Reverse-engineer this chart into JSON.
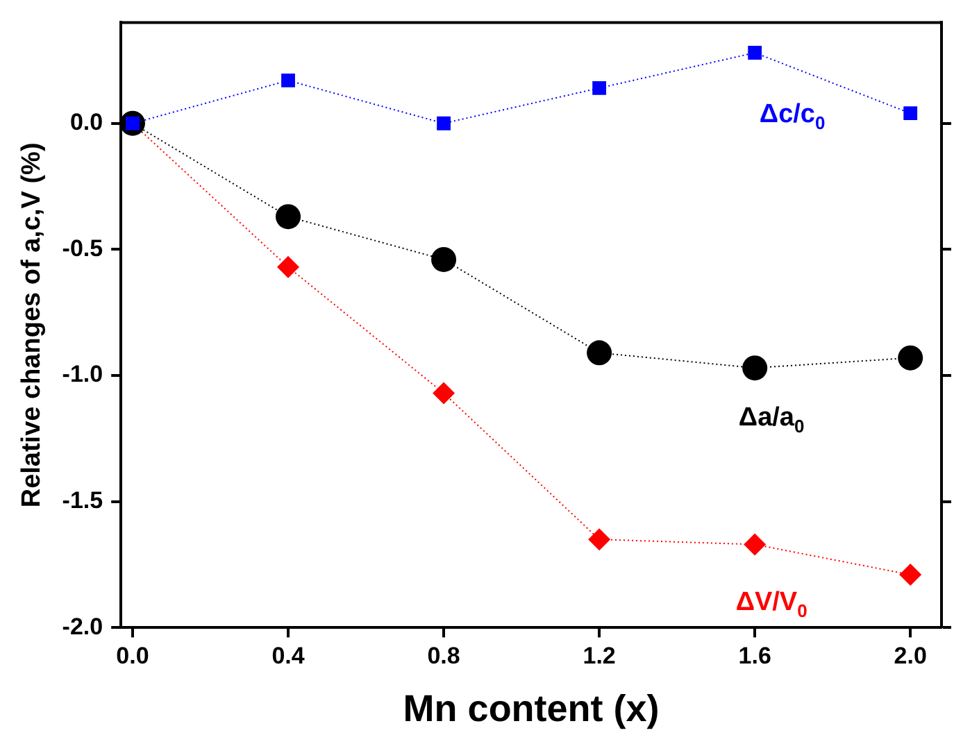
{
  "chart_data": {
    "type": "line",
    "xlabel": "Mn content (x)",
    "ylabel": "Relative changes of a,c,V (%)",
    "x": [
      0,
      0.4,
      0.8,
      1.2,
      1.6,
      2.0
    ],
    "series": [
      {
        "name": "Δc/c$_{0}$",
        "color": "#0000ff",
        "marker": "square",
        "values": [
          0,
          0.17,
          0,
          0.14,
          0.28,
          0.04
        ]
      },
      {
        "name": "Δa/a$_{0}$",
        "color": "#000000",
        "marker": "circle",
        "values": [
          0,
          -0.37,
          -0.54,
          -0.91,
          -0.97,
          -0.93
        ]
      },
      {
        "name": "ΔV/V$_{0}$",
        "color": "#ff0000",
        "marker": "diamond",
        "values": [
          0,
          -0.57,
          -1.07,
          -1.65,
          -1.67,
          -1.79
        ]
      }
    ],
    "xlim": [
      -0.03,
      2.08
    ],
    "xticks": [
      {
        "value": 0,
        "label": "0.0"
      },
      0.4,
      0.8,
      1.2,
      1.6,
      {
        "value": 2,
        "label": "2.0"
      }
    ],
    "ylim": [
      -2.0,
      0.4
    ],
    "yticks": [
      {
        "value": -2,
        "label": "-2.0"
      },
      -1.5,
      {
        "value": -1,
        "label": "-1.0"
      },
      -0.5,
      {
        "value": 0,
        "label": "0.0"
      }
    ],
    "grid": false,
    "legend": false,
    "line_style": "dotted"
  }
}
